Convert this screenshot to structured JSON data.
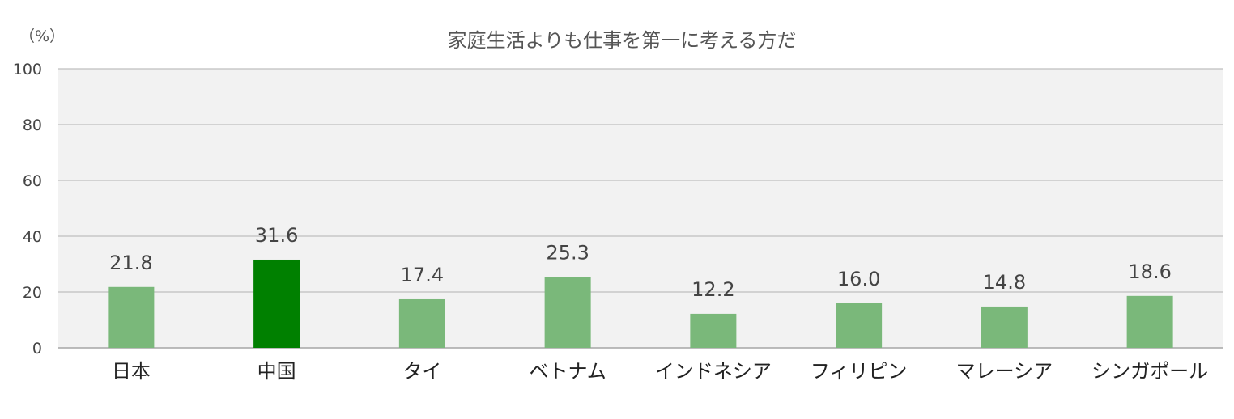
{
  "chart_data": {
    "type": "bar",
    "title": "家庭生活よりも仕事を第一に考える方だ",
    "ylabel": "（%）",
    "xlabel": "",
    "ylim": [
      0,
      100
    ],
    "yticks": [
      0,
      20,
      40,
      60,
      80,
      100
    ],
    "grid": true,
    "categories": [
      "日本",
      "中国",
      "タイ",
      "ベトナム",
      "インドネシア",
      "フィリピン",
      "マレーシア",
      "シンガポール"
    ],
    "values": [
      21.8,
      31.6,
      17.4,
      25.3,
      12.2,
      16.0,
      14.8,
      18.6
    ],
    "value_labels": [
      "21.8",
      "31.6",
      "17.4",
      "25.3",
      "12.2",
      "16.0",
      "14.8",
      "18.6"
    ],
    "highlight_category": "中国"
  },
  "colors": {
    "bar": "#7ab87a",
    "highlight_bar": "#008000",
    "plot_background": "#f2f2f2",
    "gridline": "#bfbfbf",
    "axis": "#a6a6a6"
  }
}
